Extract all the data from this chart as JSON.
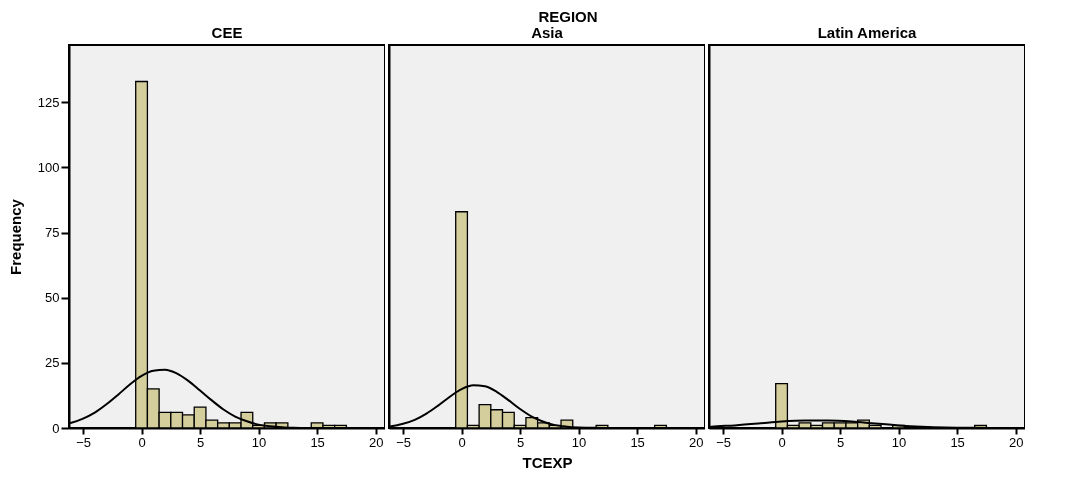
{
  "chart_data": [
    {
      "type": "histogram",
      "title": "CEE",
      "ylabel": "Frequency",
      "annotations": [
        "REGION"
      ],
      "bins": [
        -0.5,
        0.5,
        1.5,
        2.5,
        3.5,
        4.5,
        5.5,
        6.5,
        7.5,
        8.5,
        9.5,
        10.5,
        11.5,
        12.5,
        13.5,
        14.5,
        15.5,
        16.5,
        17.5
      ],
      "xlim": [
        -6.2,
        20.8
      ],
      "xticks": [
        -5,
        0,
        5,
        10,
        15,
        20
      ],
      "ylim": [
        0,
        147
      ],
      "yticks": [
        0,
        25,
        50,
        75,
        100,
        125
      ],
      "grid": false,
      "series": [
        {
          "type": "histogram",
          "color": "#d4cd9c",
          "values": [
            133,
            15,
            6,
            6,
            5,
            8,
            3,
            2,
            2,
            6,
            1,
            2,
            2,
            0,
            0,
            2,
            1,
            1
          ]
        },
        {
          "type": "line",
          "color": "#000000",
          "x": [
            -6.2,
            -6,
            -5,
            -4,
            -3,
            -2,
            -1,
            0,
            1,
            2,
            3,
            4,
            5,
            6,
            7,
            8,
            9,
            10,
            11,
            12,
            13,
            14,
            16,
            18,
            20
          ],
          "values": [
            1.8,
            2.0,
            3.6,
            5.9,
            9.1,
            12.8,
            16.7,
            20.0,
            22.0,
            22.4,
            21.0,
            18.1,
            14.4,
            10.6,
            7.1,
            4.4,
            2.6,
            1.3,
            0.7,
            0.3,
            0.1,
            0,
            0,
            0,
            0
          ]
        }
      ]
    },
    {
      "type": "histogram",
      "title": "Asia",
      "xlabel": "TCEXP",
      "tick_labels": "x",
      "bins": [
        -0.5,
        0.5,
        1.5,
        2.5,
        3.5,
        4.5,
        5.5,
        6.5,
        7.5,
        8.5,
        9.5,
        10.5,
        11.5,
        12.5,
        13.5,
        14.5,
        15.5,
        16.5,
        17.5
      ],
      "xlim": [
        -6.2,
        20.8
      ],
      "xticks": [
        -5,
        0,
        5,
        10,
        15,
        20
      ],
      "ylim": [
        0,
        147
      ],
      "yticks": [
        0,
        25,
        50,
        75,
        100,
        125
      ],
      "grid": false,
      "series": [
        {
          "type": "histogram",
          "color": "#d4cd9c",
          "values": [
            83,
            1,
            9,
            7,
            6,
            1,
            4,
            2,
            1,
            3,
            0,
            0,
            1,
            0,
            0,
            0,
            0,
            1
          ]
        },
        {
          "type": "line",
          "color": "#000000",
          "x": [
            -6.2,
            -6,
            -5,
            -4,
            -3,
            -2,
            -1,
            0,
            1,
            2,
            3,
            4,
            5,
            6,
            7,
            8,
            9,
            10,
            11,
            12,
            14,
            16,
            18,
            20
          ],
          "values": [
            0.6,
            0.7,
            1.6,
            3.1,
            5.5,
            8.6,
            12.0,
            14.9,
            16.4,
            16.0,
            13.9,
            10.7,
            7.3,
            4.4,
            2.4,
            1.1,
            0.5,
            0.2,
            0.1,
            0,
            0,
            0,
            0,
            0
          ]
        }
      ]
    },
    {
      "type": "histogram",
      "title": "Latin America",
      "tick_labels": "x",
      "bins": [
        -0.5,
        0.5,
        1.5,
        2.5,
        3.5,
        4.5,
        5.5,
        6.5,
        7.5,
        8.5,
        9.5,
        10.5,
        11.5,
        12.5,
        13.5,
        14.5,
        15.5,
        16.5,
        17.5
      ],
      "xlim": [
        -6.2,
        20.8
      ],
      "xticks": [
        -5,
        0,
        5,
        10,
        15,
        20
      ],
      "ylim": [
        0,
        147
      ],
      "yticks": [
        0,
        25,
        50,
        75,
        100,
        125
      ],
      "grid": false,
      "series": [
        {
          "type": "histogram",
          "color": "#d4cd9c",
          "values": [
            17,
            1,
            2,
            1,
            2,
            2,
            2,
            3,
            1,
            0,
            1,
            0,
            0,
            0,
            0,
            0,
            0,
            1
          ]
        },
        {
          "type": "line",
          "color": "#000000",
          "x": [
            -6.2,
            -6,
            -4,
            -2,
            0,
            2,
            4,
            6,
            8,
            10,
            12,
            14,
            16,
            18,
            20
          ],
          "values": [
            0.4,
            0.5,
            1.0,
            1.7,
            2.5,
            2.9,
            2.9,
            2.5,
            1.7,
            1.0,
            0.5,
            0.2,
            0.1,
            0,
            0
          ]
        }
      ]
    }
  ]
}
